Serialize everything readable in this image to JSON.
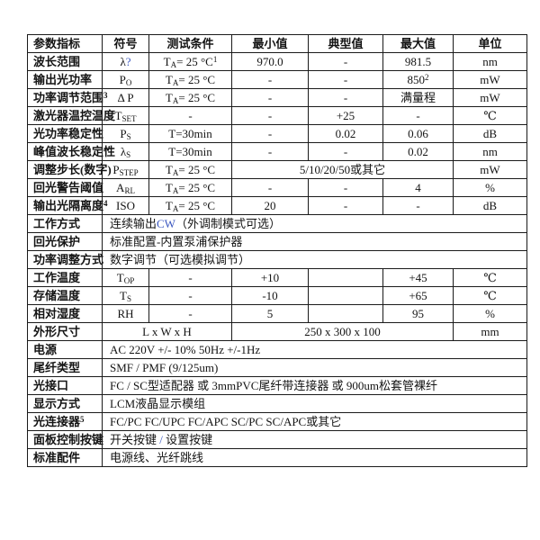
{
  "page": {
    "background": "#ffffff",
    "accent_color": "#3a57c0",
    "border_color": "#1a1a1a"
  },
  "table": {
    "columns": [
      {
        "label": "参数指标",
        "width": 83,
        "align": "left"
      },
      {
        "label": "符号",
        "width": 52,
        "align": "center"
      },
      {
        "label": "测试条件",
        "width": 92,
        "align": "center"
      },
      {
        "label": "最小值",
        "width": 85,
        "align": "center"
      },
      {
        "label": "典型值",
        "width": 83,
        "align": "center"
      },
      {
        "label": "最大值",
        "width": 78,
        "align": "center"
      },
      {
        "label": "单位",
        "width": 82,
        "align": "center"
      }
    ],
    "rows": [
      {
        "cells": [
          "波长范围",
          "λ@{?}",
          "T_{A}= 25 °C^{1}",
          "970.0",
          "-",
          "981.5",
          "nm"
        ]
      },
      {
        "cells": [
          "输出光功率",
          "P_{O}",
          "T_{A}= 25 °C",
          "-",
          "-",
          "850^{2}",
          "mW"
        ]
      },
      {
        "cells": [
          "功率调节范围^{3}",
          "Δ P",
          "T_{A}= 25 °C",
          "-",
          "-",
          "满量程",
          "mW"
        ]
      },
      {
        "cells": [
          "激光器温控温度",
          "T_{SET}",
          "-",
          "-",
          "+25",
          "-",
          "℃"
        ]
      },
      {
        "cells": [
          "光功率稳定性",
          "P_{S}",
          "T=30min",
          "-",
          "0.02",
          "0.06",
          "dB"
        ]
      },
      {
        "cells": [
          "峰值波长稳定性",
          "λ_{S}",
          "T=30min",
          "-",
          "-",
          "0.02",
          "nm"
        ]
      },
      {
        "cells": [
          "调整步长(数字)",
          "P_{STEP}",
          "T_{A}= 25 °C",
          {
            "text": "5/10/20/50或其它",
            "colspan": 3,
            "align": "center"
          },
          "mW"
        ]
      },
      {
        "cells": [
          "回光警告阈值",
          "A_{RL}",
          "T_{A}= 25 °C",
          "-",
          "-",
          "4",
          "%"
        ]
      },
      {
        "cells": [
          "输出光隔离度^{4}",
          "ISO",
          "T_{A}= 25 °C",
          "20",
          "-",
          "-",
          "dB"
        ]
      },
      {
        "cells": [
          "工作方式",
          {
            "text": "连续输出@{CW}（外调制模式可选）",
            "colspan": 6,
            "align": "left"
          }
        ]
      },
      {
        "cells": [
          "回光保护",
          {
            "text": "标准配置-内置泵浦保护器",
            "colspan": 6,
            "align": "left"
          }
        ]
      },
      {
        "cells": [
          "功率调整方式",
          {
            "text": "数字调节（可选模拟调节）",
            "colspan": 6,
            "align": "left"
          }
        ]
      },
      {
        "cells": [
          "工作温度",
          "T_{OP}",
          "-",
          "+10",
          "",
          "+45",
          "℃"
        ]
      },
      {
        "cells": [
          "存储温度",
          "T_{S}",
          "-",
          "-10",
          "",
          "+65",
          "℃"
        ]
      },
      {
        "cells": [
          "相对湿度",
          "RH",
          "-",
          "5",
          "",
          "95",
          "%"
        ]
      },
      {
        "cells": [
          "外形尺寸",
          {
            "text": "L x W x H",
            "colspan": 2,
            "align": "center"
          },
          {
            "text": "250 x 300 x 100",
            "colspan": 3,
            "align": "center"
          },
          "mm"
        ]
      },
      {
        "cells": [
          "电源",
          {
            "text": "AC 220V +/- 10% 50Hz +/-1Hz",
            "colspan": 6,
            "align": "left"
          }
        ]
      },
      {
        "cells": [
          "尾纤类型",
          {
            "text": "SMF / PMF (9/125um)",
            "colspan": 6,
            "align": "left"
          }
        ]
      },
      {
        "cells": [
          "光接口",
          {
            "text": "FC / SC型适配器  或  3mmPVC尾纤带连接器  或  900um松套管裸纤",
            "colspan": 6,
            "align": "left"
          }
        ]
      },
      {
        "cells": [
          "显示方式",
          {
            "text": "LCM液晶显示模组",
            "colspan": 6,
            "align": "left"
          }
        ]
      },
      {
        "cells": [
          "光连接器^{5}",
          {
            "text": "FC/PC FC/UPC FC/APC SC/PC SC/APC或其它",
            "colspan": 6,
            "align": "left"
          }
        ]
      },
      {
        "cells": [
          "面板控制按键",
          {
            "text": "开关按键 @{/} 设置按键",
            "colspan": 6,
            "align": "left"
          }
        ]
      },
      {
        "cells": [
          "标准配件",
          {
            "text": "电源线、光纤跳线",
            "colspan": 6,
            "align": "left"
          }
        ]
      }
    ]
  }
}
